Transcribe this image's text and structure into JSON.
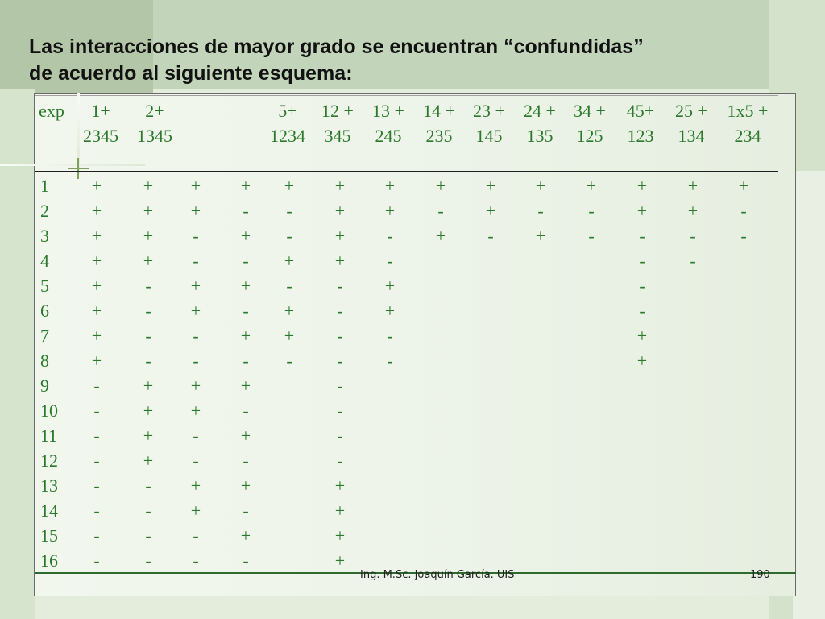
{
  "slide": {
    "title_line1": "Las interacciones de mayor grado se encuentran “confundidas”",
    "title_line2": "de acuerdo al siguiente esquema:",
    "footer_author": "Ing. M.Sc. Joaquín García.   UIS",
    "page_number": "190"
  },
  "table": {
    "corner": "exp",
    "headers": [
      {
        "top": "1+",
        "bottom": "2345"
      },
      {
        "top": "2+",
        "bottom": "1345"
      },
      {
        "top": "",
        "bottom": ""
      },
      {
        "top": "",
        "bottom": ""
      },
      {
        "top": "5+",
        "bottom": "1234"
      },
      {
        "top": "12 +",
        "bottom": "345"
      },
      {
        "top": "13 +",
        "bottom": "245"
      },
      {
        "top": "14 +",
        "bottom": "235"
      },
      {
        "top": "23 +",
        "bottom": "145"
      },
      {
        "top": "24 +",
        "bottom": "135"
      },
      {
        "top": "34 +",
        "bottom": "125"
      },
      {
        "top": "45+",
        "bottom": "123"
      },
      {
        "top": "25 +",
        "bottom": "134"
      },
      {
        "top": "1x5 +",
        "bottom": "234"
      }
    ],
    "rows": [
      {
        "exp": "1",
        "cells": [
          "+",
          "+",
          "+",
          "+",
          "+",
          "+",
          "+",
          "+",
          "+",
          "+",
          "+",
          "+",
          "+",
          "+"
        ]
      },
      {
        "exp": "2",
        "cells": [
          "+",
          "+",
          "+",
          "-",
          "-",
          "+",
          "+",
          "-",
          "+",
          "-",
          "-",
          "+",
          "+",
          "-"
        ]
      },
      {
        "exp": "3",
        "cells": [
          "+",
          "+",
          "-",
          "+",
          "-",
          "+",
          "-",
          "+",
          "-",
          "+",
          "-",
          "-",
          "-",
          "-"
        ]
      },
      {
        "exp": "4",
        "cells": [
          "+",
          "+",
          "-",
          "-",
          "+",
          "+",
          "-",
          "",
          "",
          "",
          "",
          "-",
          "-",
          ""
        ]
      },
      {
        "exp": "5",
        "cells": [
          "+",
          "-",
          "+",
          "+",
          "-",
          "-",
          "+",
          "",
          "",
          "",
          "",
          "-",
          "",
          ""
        ]
      },
      {
        "exp": "6",
        "cells": [
          "+",
          "-",
          "+",
          "-",
          "+",
          "-",
          "+",
          "",
          "",
          "",
          "",
          "-",
          "",
          ""
        ]
      },
      {
        "exp": "7",
        "cells": [
          "+",
          "-",
          "-",
          "+",
          "+",
          "-",
          "-",
          "",
          "",
          "",
          "",
          "+",
          "",
          ""
        ]
      },
      {
        "exp": "8",
        "cells": [
          "+",
          "-",
          "-",
          "-",
          "-",
          "-",
          "-",
          "",
          "",
          "",
          "",
          "+",
          "",
          ""
        ]
      },
      {
        "exp": "9",
        "cells": [
          "-",
          "+",
          "+",
          "+",
          "",
          "-",
          "",
          "",
          "",
          "",
          "",
          "",
          "",
          ""
        ]
      },
      {
        "exp": "10",
        "cells": [
          "-",
          "+",
          "+",
          "-",
          "",
          "-",
          "",
          "",
          "",
          "",
          "",
          "",
          "",
          ""
        ]
      },
      {
        "exp": "11",
        "cells": [
          "-",
          "+",
          "-",
          "+",
          "",
          "-",
          "",
          "",
          "",
          "",
          "",
          "",
          "",
          ""
        ]
      },
      {
        "exp": "12",
        "cells": [
          "-",
          "+",
          "-",
          "-",
          "",
          "-",
          "",
          "",
          "",
          "",
          "",
          "",
          "",
          ""
        ]
      },
      {
        "exp": "13",
        "cells": [
          "-",
          "-",
          "+",
          "+",
          "",
          "+",
          "",
          "",
          "",
          "",
          "",
          "",
          "",
          ""
        ]
      },
      {
        "exp": "14",
        "cells": [
          "-",
          "-",
          "+",
          "-",
          "",
          "+",
          "",
          "",
          "",
          "",
          "",
          "",
          "",
          ""
        ]
      },
      {
        "exp": "15",
        "cells": [
          "-",
          "-",
          "-",
          "+",
          "",
          "+",
          "",
          "",
          "",
          "",
          "",
          "",
          "",
          ""
        ]
      },
      {
        "exp": "16",
        "cells": [
          "-",
          "-",
          "-",
          "-",
          "",
          "+",
          "",
          "",
          "",
          "",
          "",
          "",
          "",
          ""
        ]
      }
    ]
  }
}
